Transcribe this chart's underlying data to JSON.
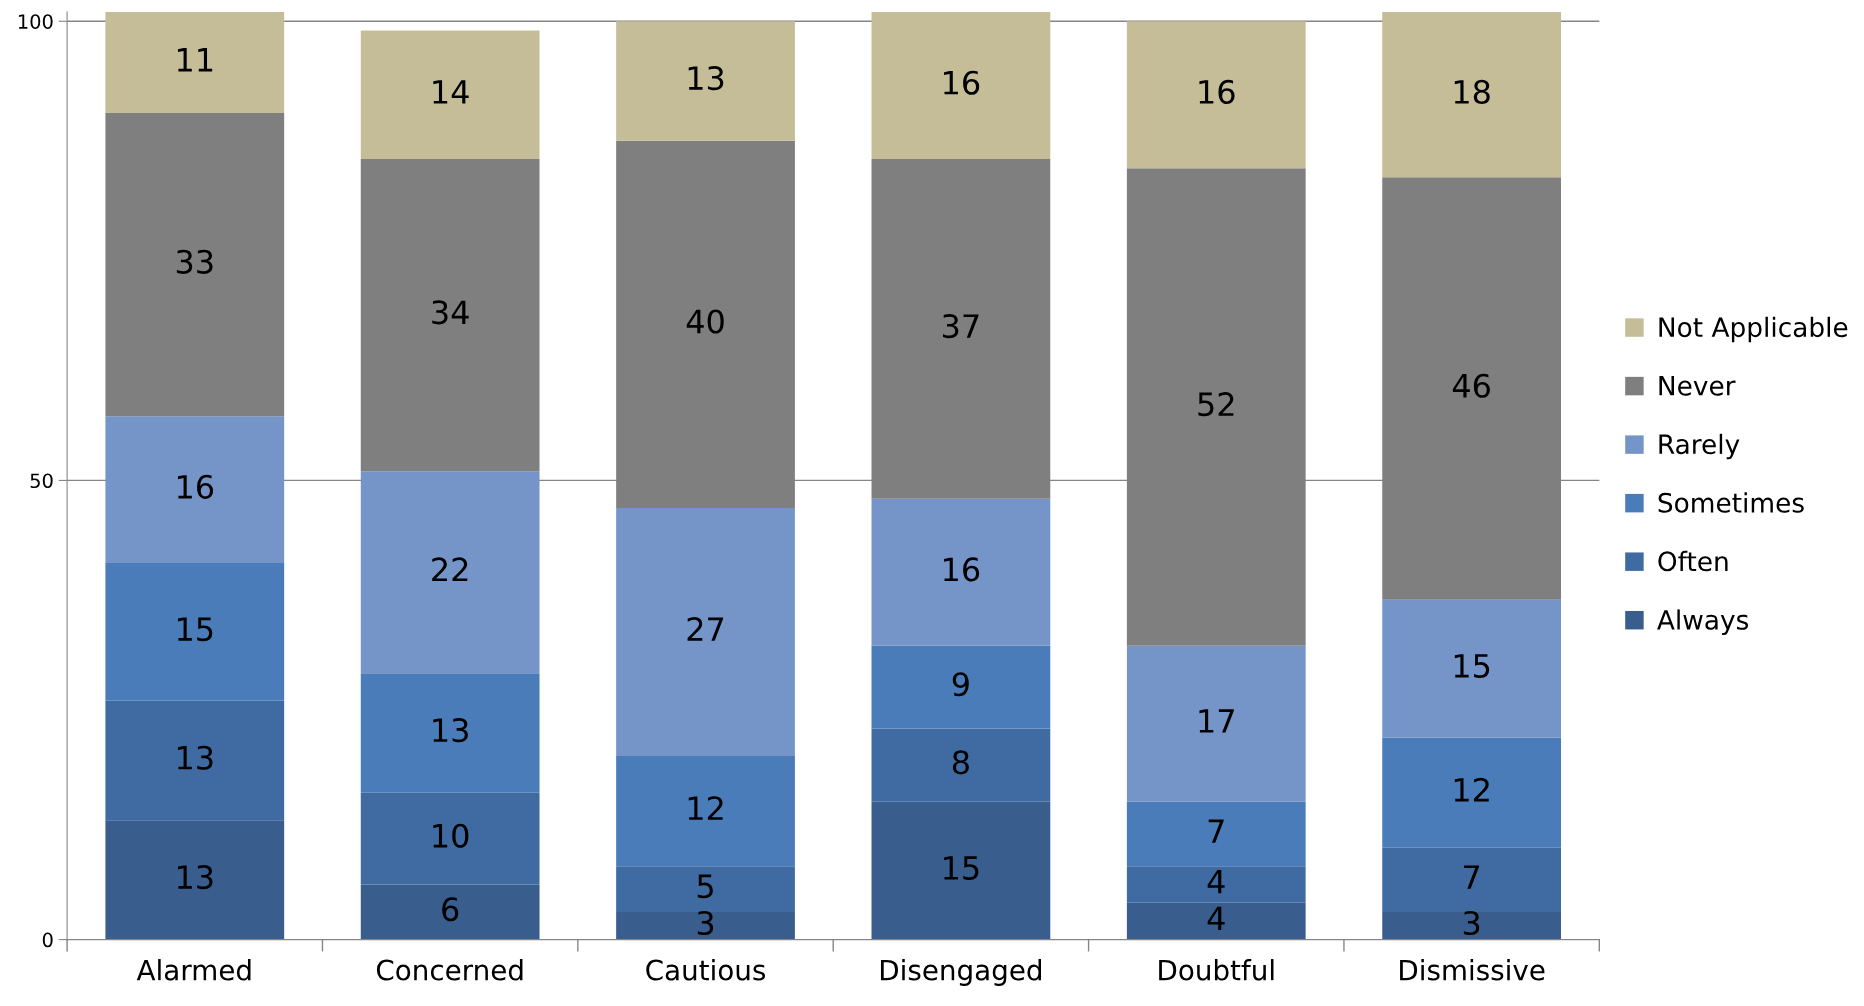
{
  "chart_data": {
    "type": "bar",
    "stacked": true,
    "categories": [
      "Alarmed",
      "Concerned",
      "Cautious",
      "Disengaged",
      "Doubtful",
      "Dismissive"
    ],
    "series": [
      {
        "name": "Always",
        "color": "#395d8c",
        "values": [
          13,
          6,
          3,
          15,
          4,
          3
        ]
      },
      {
        "name": "Often",
        "color": "#3f6ba2",
        "values": [
          13,
          10,
          5,
          8,
          4,
          7
        ]
      },
      {
        "name": "Sometimes",
        "color": "#4a7cb9",
        "values": [
          15,
          13,
          12,
          9,
          7,
          12
        ]
      },
      {
        "name": "Rarely",
        "color": "#7595c8",
        "values": [
          16,
          22,
          27,
          16,
          17,
          15
        ]
      },
      {
        "name": "Never",
        "color": "#7f7f7f",
        "values": [
          33,
          34,
          40,
          37,
          52,
          46
        ]
      },
      {
        "name": "Not Applicable",
        "color": "#c4bd97",
        "values": [
          11,
          14,
          13,
          16,
          16,
          18
        ]
      }
    ],
    "ylim": [
      0,
      101
    ],
    "yticks": [
      0,
      50,
      100
    ],
    "grid": "y",
    "legend": "right",
    "data_labels": true
  }
}
